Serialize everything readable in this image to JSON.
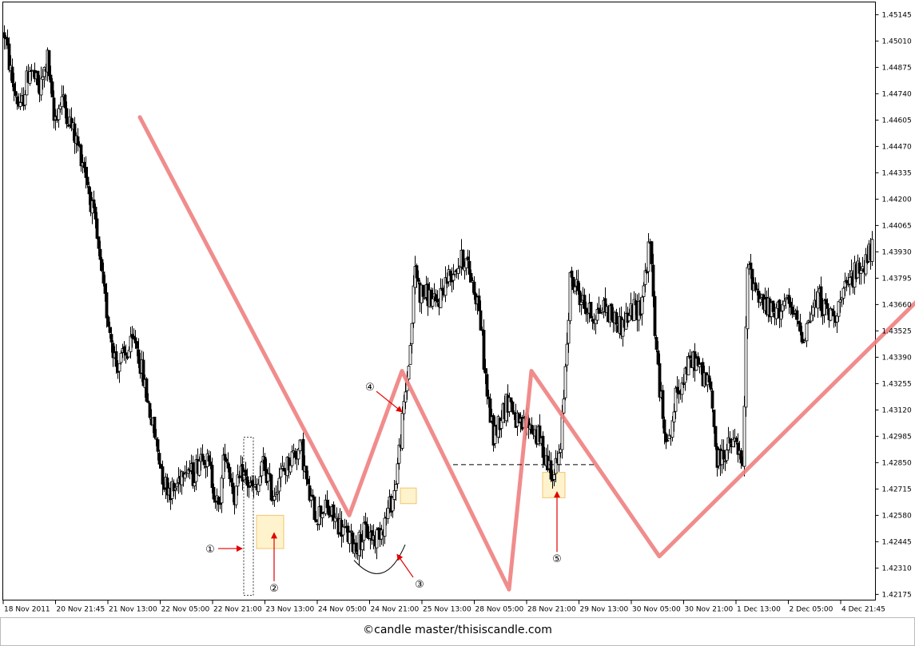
{
  "credit": "©candle master/thisiscandle.com",
  "colors": {
    "candle": "#000000",
    "zigzag": "#f08080",
    "arrow": "#e00000",
    "highlight_fill": "#fff2c8",
    "highlight_stroke": "#f0c060",
    "grid": "#000000"
  },
  "chart_data": {
    "type": "candlestick",
    "title": "",
    "xlabel": "",
    "ylabel": "",
    "ylim": [
      1.4205,
      1.4525
    ],
    "y_ticks": [
      "1.45145",
      "1.45010",
      "1.44875",
      "1.44740",
      "1.44605",
      "1.44470",
      "1.44335",
      "1.44200",
      "1.44065",
      "1.43930",
      "1.43795",
      "1.43660",
      "1.43525",
      "1.43390",
      "1.43255",
      "1.43120",
      "1.42985",
      "1.42850",
      "1.42715",
      "1.42580",
      "1.42445",
      "1.42310",
      "1.42175"
    ],
    "x_ticks": [
      "18 Nov 2011",
      "20 Nov 21:45",
      "21 Nov 13:00",
      "22 Nov 05:00",
      "22 Nov 21:00",
      "23 Nov 13:00",
      "24 Nov 05:00",
      "24 Nov 21:00",
      "25 Nov 13:00",
      "28 Nov 05:00",
      "28 Nov 21:00",
      "29 Nov 13:00",
      "30 Nov 05:00",
      "30 Nov 21:00",
      "1 Dec 13:00",
      "2 Dec 05:00",
      "4 Dec 21:45"
    ],
    "path_shape": [
      [
        0,
        1.4505
      ],
      [
        5,
        1.448
      ],
      [
        10,
        1.4465
      ],
      [
        16,
        1.4488
      ],
      [
        22,
        1.4475
      ],
      [
        27,
        1.4492
      ],
      [
        31,
        1.446
      ],
      [
        36,
        1.4472
      ],
      [
        44,
        1.4452
      ],
      [
        50,
        1.4438
      ],
      [
        57,
        1.4405
      ],
      [
        62,
        1.4372
      ],
      [
        70,
        1.4335
      ],
      [
        76,
        1.434
      ],
      [
        82,
        1.4348
      ],
      [
        86,
        1.4332
      ],
      [
        90,
        1.4315
      ],
      [
        95,
        1.4295
      ],
      [
        100,
        1.4275
      ],
      [
        106,
        1.427
      ],
      [
        113,
        1.4285
      ],
      [
        118,
        1.4278
      ],
      [
        124,
        1.4292
      ],
      [
        129,
        1.428
      ],
      [
        134,
        1.426
      ],
      [
        138,
        1.4292
      ],
      [
        144,
        1.4268
      ],
      [
        149,
        1.428
      ],
      [
        154,
        1.4272
      ],
      [
        158,
        1.427
      ],
      [
        162,
        1.4285
      ],
      [
        168,
        1.4268
      ],
      [
        172,
        1.4278
      ],
      [
        176,
        1.4282
      ],
      [
        181,
        1.429
      ],
      [
        186,
        1.4292
      ],
      [
        190,
        1.427
      ],
      [
        195,
        1.4258
      ],
      [
        200,
        1.4262
      ],
      [
        208,
        1.4255
      ],
      [
        214,
        1.4248
      ],
      [
        220,
        1.4242
      ],
      [
        226,
        1.425
      ],
      [
        232,
        1.4246
      ],
      [
        238,
        1.4255
      ],
      [
        244,
        1.427
      ],
      [
        249,
        1.4305
      ],
      [
        254,
        1.4345
      ],
      [
        257,
        1.4385
      ],
      [
        260,
        1.4372
      ],
      [
        266,
        1.437
      ],
      [
        270,
        1.4365
      ],
      [
        276,
        1.4378
      ],
      [
        282,
        1.4385
      ],
      [
        288,
        1.439
      ],
      [
        292,
        1.438
      ],
      [
        297,
        1.4365
      ],
      [
        302,
        1.432
      ],
      [
        306,
        1.4298
      ],
      [
        311,
        1.431
      ],
      [
        316,
        1.4318
      ],
      [
        322,
        1.4302
      ],
      [
        328,
        1.4305
      ],
      [
        334,
        1.4298
      ],
      [
        340,
        1.4285
      ],
      [
        344,
        1.428
      ],
      [
        348,
        1.429
      ],
      [
        351,
        1.4335
      ],
      [
        354,
        1.4378
      ],
      [
        358,
        1.4375
      ],
      [
        363,
        1.4365
      ],
      [
        368,
        1.436
      ],
      [
        375,
        1.4365
      ],
      [
        380,
        1.436
      ],
      [
        386,
        1.4355
      ],
      [
        392,
        1.4362
      ],
      [
        398,
        1.4365
      ],
      [
        404,
        1.4398
      ],
      [
        408,
        1.434
      ],
      [
        412,
        1.4308
      ],
      [
        416,
        1.4295
      ],
      [
        420,
        1.4318
      ],
      [
        426,
        1.4332
      ],
      [
        432,
        1.4338
      ],
      [
        437,
        1.433
      ],
      [
        442,
        1.4322
      ],
      [
        446,
        1.4285
      ],
      [
        452,
        1.4292
      ],
      [
        458,
        1.4295
      ],
      [
        462,
        1.428
      ],
      [
        465,
        1.4385
      ],
      [
        470,
        1.4375
      ],
      [
        476,
        1.4365
      ],
      [
        482,
        1.436
      ],
      [
        488,
        1.4368
      ],
      [
        494,
        1.436
      ],
      [
        500,
        1.435
      ],
      [
        504,
        1.436
      ],
      [
        510,
        1.437
      ],
      [
        514,
        1.4362
      ],
      [
        518,
        1.436
      ],
      [
        524,
        1.4368
      ],
      [
        530,
        1.438
      ],
      [
        536,
        1.4385
      ],
      [
        541,
        1.4392
      ],
      [
        545,
        1.4398
      ],
      [
        548,
        1.4388
      ]
    ],
    "annotations": {
      "zigzag": [
        [
          1.4462,
          85
        ],
        [
          1.4258,
          216
        ],
        [
          1.4332,
          249
        ],
        [
          1.422,
          316
        ],
        [
          1.4332,
          330
        ],
        [
          1.4237,
          410
        ],
        [
          1.4383,
          590
        ]
      ],
      "labels": [
        {
          "text": "①",
          "price": 1.4241,
          "bar": 129,
          "arrow_to_bar": 150
        },
        {
          "text": "②",
          "price": 1.4221,
          "bar": 169,
          "arrow_to_price": 1.4249
        },
        {
          "text": "③",
          "price": 1.4223,
          "bar": 260,
          "arrow_to_bar": 245
        },
        {
          "text": "④",
          "price": 1.4324,
          "bar": 229,
          "arrow_to_bar": 249
        },
        {
          "text": "⑤",
          "price": 1.4236,
          "bar": 346,
          "arrow_to_price": 1.427
        }
      ]
    }
  }
}
